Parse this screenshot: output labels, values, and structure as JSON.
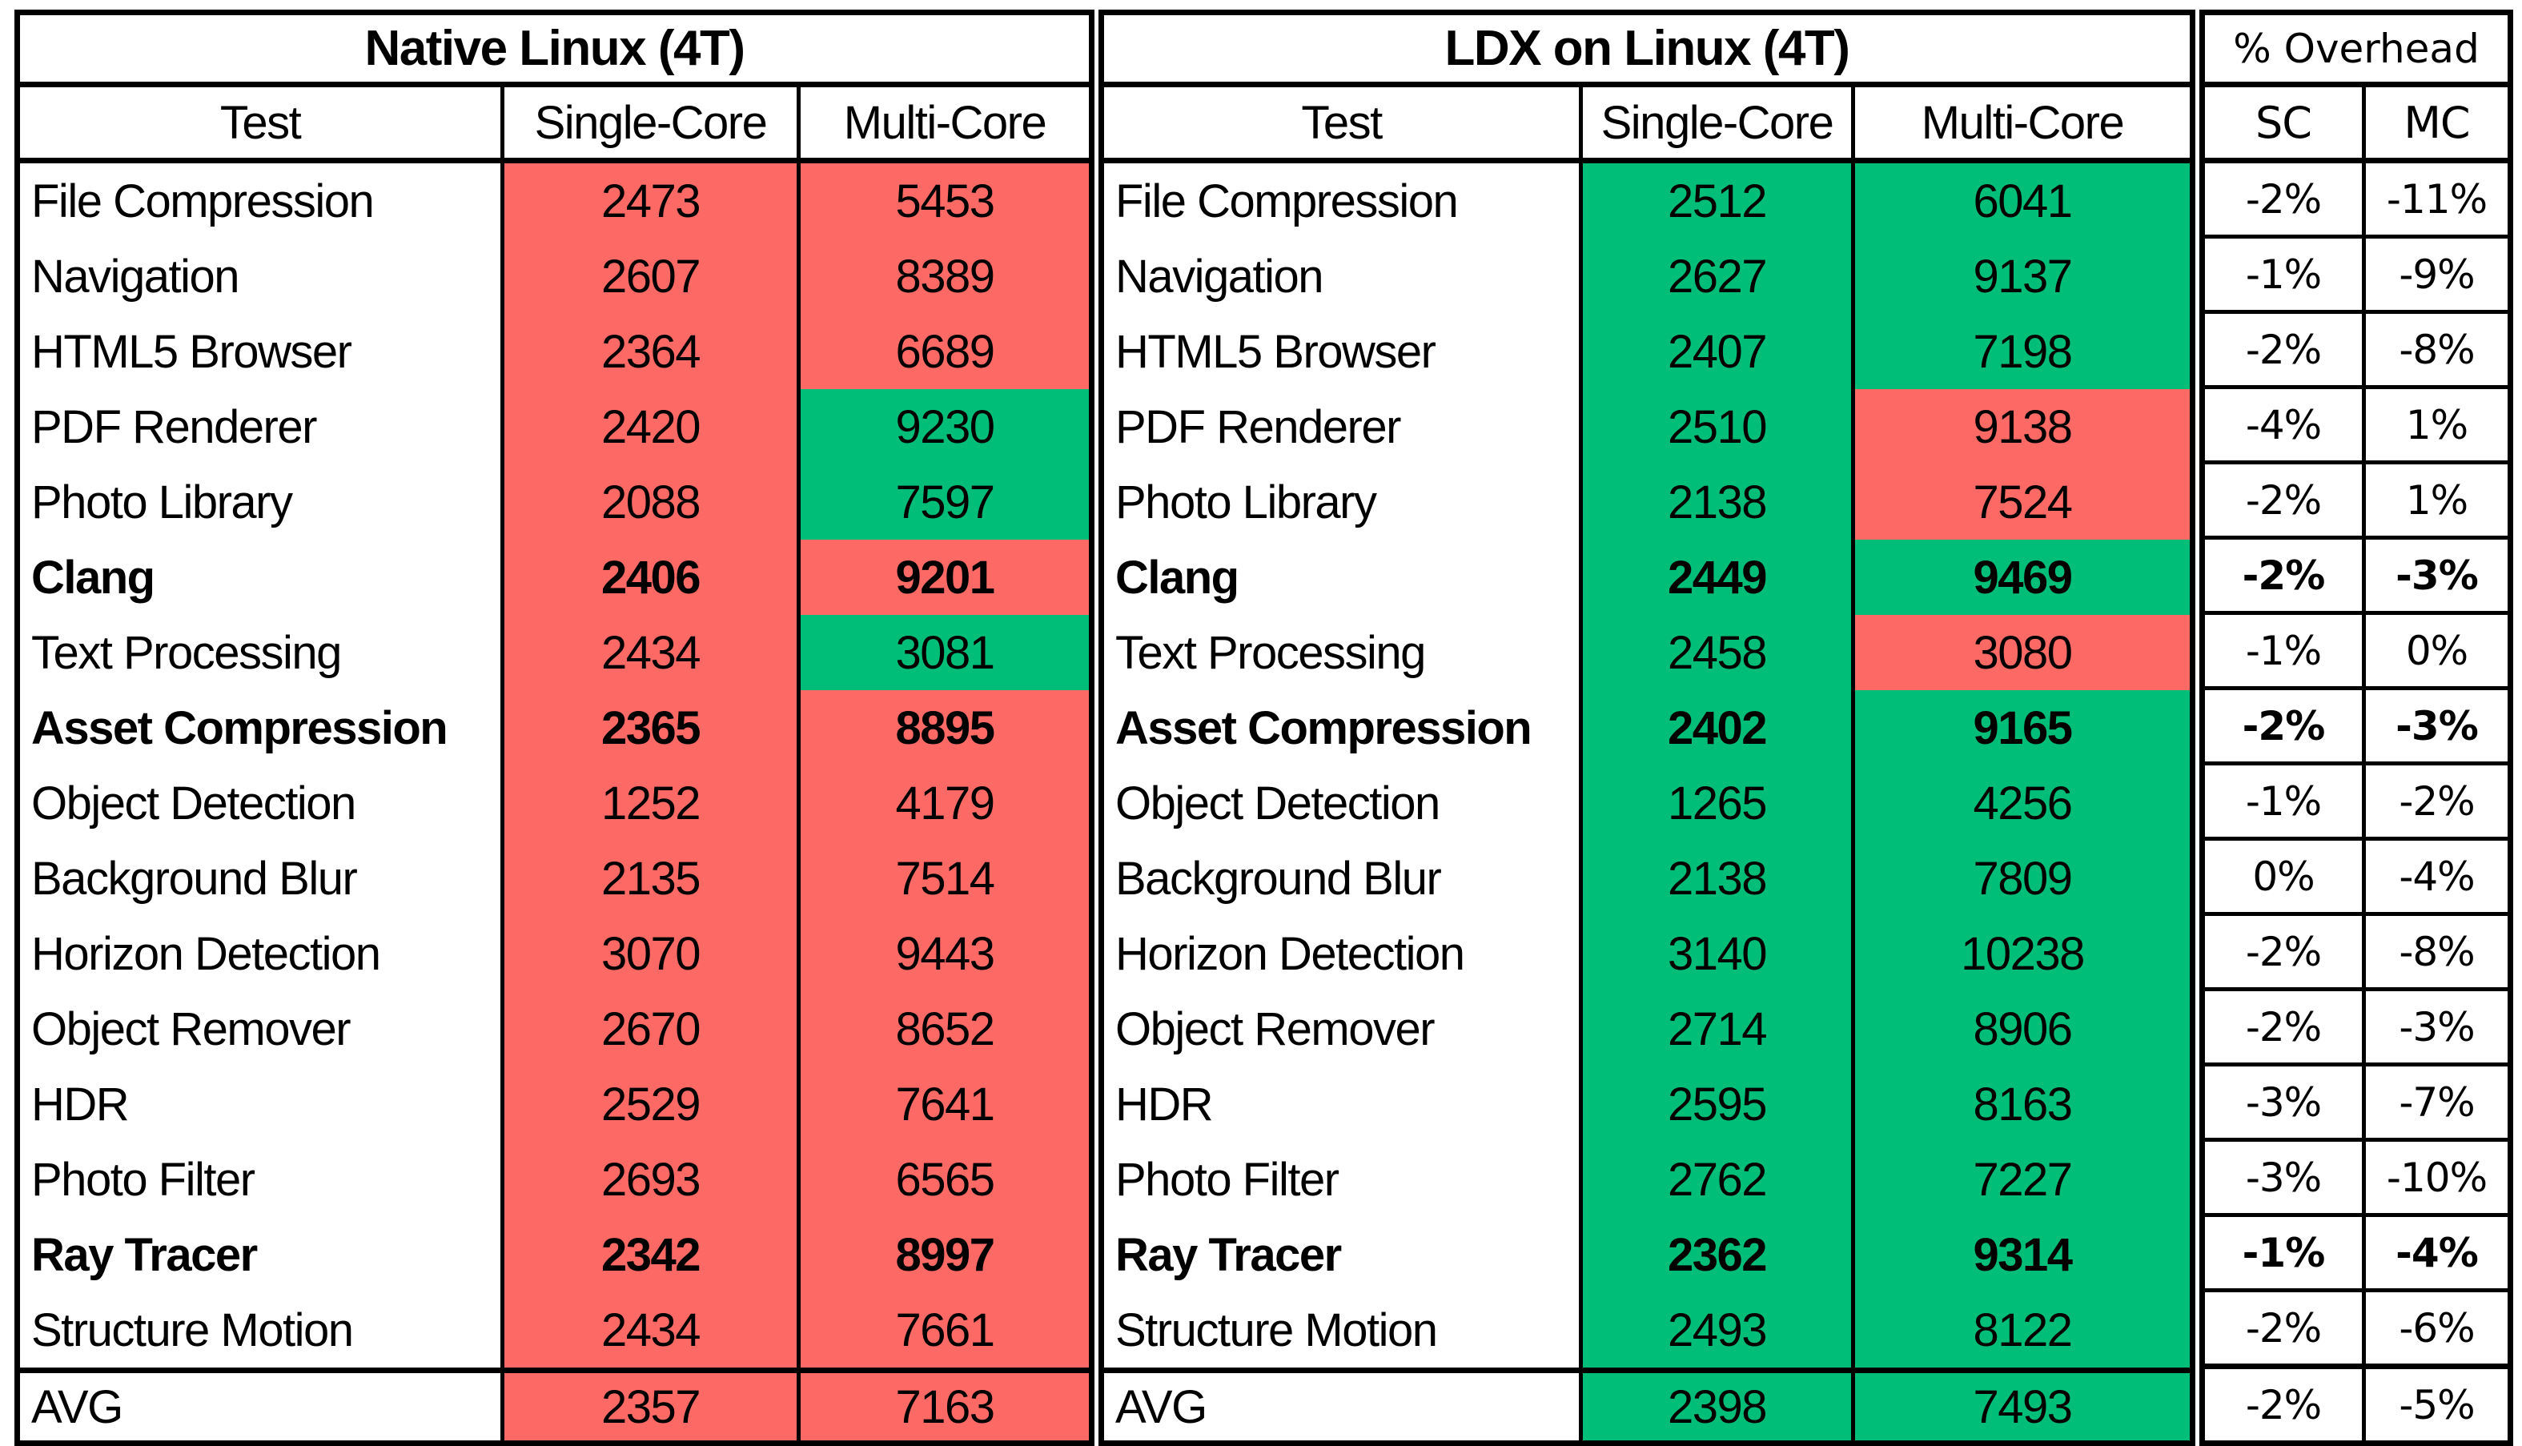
{
  "chart_data": {
    "type": "table",
    "colors": {
      "red": "#FD6A66",
      "green": "#00BE78",
      "border": "#000000"
    },
    "tables": {
      "native": {
        "title": "Native Linux (4T)",
        "columns": [
          "Test",
          "Single-Core",
          "Multi-Core"
        ],
        "rows": [
          {
            "test": "File Compression",
            "sc": 2473,
            "mc": 5453,
            "sc_color": "red",
            "mc_color": "red",
            "bold": false
          },
          {
            "test": "Navigation",
            "sc": 2607,
            "mc": 8389,
            "sc_color": "red",
            "mc_color": "red",
            "bold": false
          },
          {
            "test": "HTML5 Browser",
            "sc": 2364,
            "mc": 6689,
            "sc_color": "red",
            "mc_color": "red",
            "bold": false
          },
          {
            "test": "PDF Renderer",
            "sc": 2420,
            "mc": 9230,
            "sc_color": "red",
            "mc_color": "green",
            "bold": false
          },
          {
            "test": "Photo Library",
            "sc": 2088,
            "mc": 7597,
            "sc_color": "red",
            "mc_color": "green",
            "bold": false
          },
          {
            "test": "Clang",
            "sc": 2406,
            "mc": 9201,
            "sc_color": "red",
            "mc_color": "red",
            "bold": true
          },
          {
            "test": "Text Processing",
            "sc": 2434,
            "mc": 3081,
            "sc_color": "red",
            "mc_color": "green",
            "bold": false
          },
          {
            "test": "Asset Compression",
            "sc": 2365,
            "mc": 8895,
            "sc_color": "red",
            "mc_color": "red",
            "bold": true
          },
          {
            "test": "Object Detection",
            "sc": 1252,
            "mc": 4179,
            "sc_color": "red",
            "mc_color": "red",
            "bold": false
          },
          {
            "test": "Background Blur",
            "sc": 2135,
            "mc": 7514,
            "sc_color": "red",
            "mc_color": "red",
            "bold": false
          },
          {
            "test": "Horizon Detection",
            "sc": 3070,
            "mc": 9443,
            "sc_color": "red",
            "mc_color": "red",
            "bold": false
          },
          {
            "test": "Object Remover",
            "sc": 2670,
            "mc": 8652,
            "sc_color": "red",
            "mc_color": "red",
            "bold": false
          },
          {
            "test": "HDR",
            "sc": 2529,
            "mc": 7641,
            "sc_color": "red",
            "mc_color": "red",
            "bold": false
          },
          {
            "test": "Photo Filter",
            "sc": 2693,
            "mc": 6565,
            "sc_color": "red",
            "mc_color": "red",
            "bold": false
          },
          {
            "test": "Ray Tracer",
            "sc": 2342,
            "mc": 8997,
            "sc_color": "red",
            "mc_color": "red",
            "bold": true
          },
          {
            "test": "Structure Motion",
            "sc": 2434,
            "mc": 7661,
            "sc_color": "red",
            "mc_color": "red",
            "bold": false
          }
        ],
        "avg": {
          "label": "AVG",
          "sc": 2357,
          "mc": 7163,
          "sc_color": "red",
          "mc_color": "red"
        }
      },
      "ldx": {
        "title": "LDX on Linux (4T)",
        "columns": [
          "Test",
          "Single-Core",
          "Multi-Core"
        ],
        "rows": [
          {
            "test": "File Compression",
            "sc": 2512,
            "mc": 6041,
            "sc_color": "green",
            "mc_color": "green",
            "bold": false
          },
          {
            "test": "Navigation",
            "sc": 2627,
            "mc": 9137,
            "sc_color": "green",
            "mc_color": "green",
            "bold": false
          },
          {
            "test": "HTML5 Browser",
            "sc": 2407,
            "mc": 7198,
            "sc_color": "green",
            "mc_color": "green",
            "bold": false
          },
          {
            "test": "PDF Renderer",
            "sc": 2510,
            "mc": 9138,
            "sc_color": "green",
            "mc_color": "red",
            "bold": false
          },
          {
            "test": "Photo Library",
            "sc": 2138,
            "mc": 7524,
            "sc_color": "green",
            "mc_color": "red",
            "bold": false
          },
          {
            "test": "Clang",
            "sc": 2449,
            "mc": 9469,
            "sc_color": "green",
            "mc_color": "green",
            "bold": true
          },
          {
            "test": "Text Processing",
            "sc": 2458,
            "mc": 3080,
            "sc_color": "green",
            "mc_color": "red",
            "bold": false
          },
          {
            "test": "Asset Compression",
            "sc": 2402,
            "mc": 9165,
            "sc_color": "green",
            "mc_color": "green",
            "bold": true
          },
          {
            "test": "Object Detection",
            "sc": 1265,
            "mc": 4256,
            "sc_color": "green",
            "mc_color": "green",
            "bold": false
          },
          {
            "test": "Background Blur",
            "sc": 2138,
            "mc": 7809,
            "sc_color": "green",
            "mc_color": "green",
            "bold": false
          },
          {
            "test": "Horizon Detection",
            "sc": 3140,
            "mc": 10238,
            "sc_color": "green",
            "mc_color": "green",
            "bold": false
          },
          {
            "test": "Object Remover",
            "sc": 2714,
            "mc": 8906,
            "sc_color": "green",
            "mc_color": "green",
            "bold": false
          },
          {
            "test": "HDR",
            "sc": 2595,
            "mc": 8163,
            "sc_color": "green",
            "mc_color": "green",
            "bold": false
          },
          {
            "test": "Photo Filter",
            "sc": 2762,
            "mc": 7227,
            "sc_color": "green",
            "mc_color": "green",
            "bold": false
          },
          {
            "test": "Ray Tracer",
            "sc": 2362,
            "mc": 9314,
            "sc_color": "green",
            "mc_color": "green",
            "bold": true
          },
          {
            "test": "Structure Motion",
            "sc": 2493,
            "mc": 8122,
            "sc_color": "green",
            "mc_color": "green",
            "bold": false
          }
        ],
        "avg": {
          "label": "AVG",
          "sc": 2398,
          "mc": 7493,
          "sc_color": "green",
          "mc_color": "green"
        }
      },
      "overhead": {
        "title": "% Overhead",
        "columns": [
          "SC",
          "MC"
        ],
        "rows": [
          {
            "sc": "-2%",
            "mc": "-11%",
            "bold": false
          },
          {
            "sc": "-1%",
            "mc": "-9%",
            "bold": false
          },
          {
            "sc": "-2%",
            "mc": "-8%",
            "bold": false
          },
          {
            "sc": "-4%",
            "mc": "1%",
            "bold": false
          },
          {
            "sc": "-2%",
            "mc": "1%",
            "bold": false
          },
          {
            "sc": "-2%",
            "mc": "-3%",
            "bold": true
          },
          {
            "sc": "-1%",
            "mc": "0%",
            "bold": false
          },
          {
            "sc": "-2%",
            "mc": "-3%",
            "bold": true
          },
          {
            "sc": "-1%",
            "mc": "-2%",
            "bold": false
          },
          {
            "sc": "0%",
            "mc": "-4%",
            "bold": false
          },
          {
            "sc": "-2%",
            "mc": "-8%",
            "bold": false
          },
          {
            "sc": "-2%",
            "mc": "-3%",
            "bold": false
          },
          {
            "sc": "-3%",
            "mc": "-7%",
            "bold": false
          },
          {
            "sc": "-3%",
            "mc": "-10%",
            "bold": false
          },
          {
            "sc": "-1%",
            "mc": "-4%",
            "bold": true
          },
          {
            "sc": "-2%",
            "mc": "-6%",
            "bold": false
          }
        ],
        "avg": {
          "sc": "-2%",
          "mc": "-5%"
        }
      }
    }
  }
}
